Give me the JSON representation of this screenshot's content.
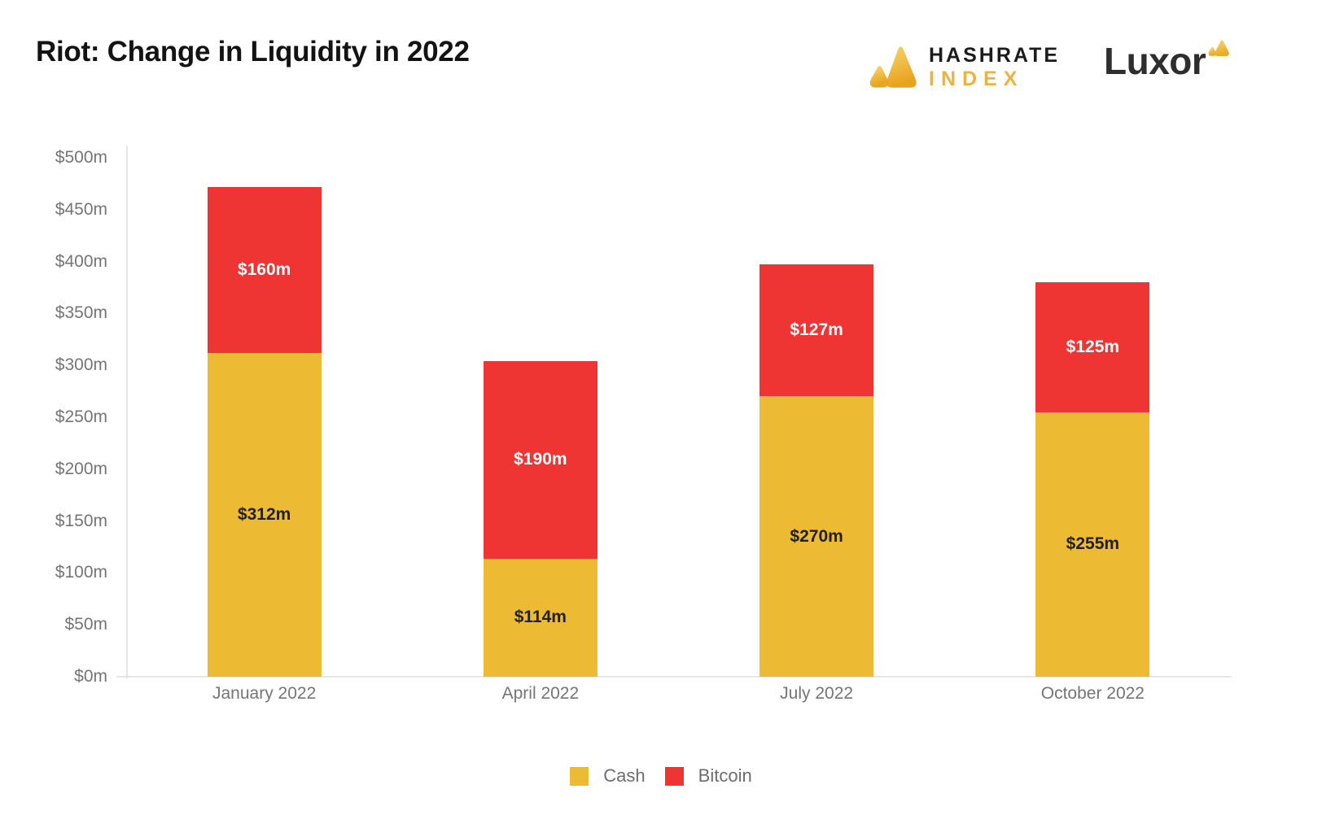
{
  "header": {
    "title": "Riot: Change in Liquidity in 2022",
    "hashrate_logo": {
      "icon": "hashrate-index-triangles-icon",
      "line1": "HASHRATE",
      "line2": "INDEX",
      "line1_color": "#1C1C1C",
      "line2_color": "#ECB243"
    },
    "luxor_logo": {
      "icon": "luxor-triangles-icon",
      "text": "Luxor",
      "text_color": "#2E2E2E"
    },
    "brand_gold": "#ECB243"
  },
  "chart_data": {
    "type": "bar",
    "stacked": true,
    "grid": false,
    "legend_position": "bottom",
    "ylim": [
      0,
      500
    ],
    "categories": [
      "January 2022",
      "April 2022",
      "July 2022",
      "October 2022"
    ],
    "series": [
      {
        "name": "Cash",
        "color": "#EDBA33",
        "label_color": "#212121",
        "values": [
          312,
          114,
          270,
          255
        ],
        "labels": [
          "$312m",
          "$114m",
          "$270m",
          "$255m"
        ]
      },
      {
        "name": "Bitcoin",
        "color": "#EE3534",
        "label_color": "#FFFFFF",
        "values": [
          160,
          190,
          127,
          125
        ],
        "labels": [
          "$160m",
          "$190m",
          "$127m",
          "$125m"
        ]
      }
    ],
    "y_ticks": [
      {
        "value": 0,
        "label": "$0m"
      },
      {
        "value": 50,
        "label": "$50m"
      },
      {
        "value": 100,
        "label": "$100m"
      },
      {
        "value": 150,
        "label": "$150m"
      },
      {
        "value": 200,
        "label": "$200m"
      },
      {
        "value": 250,
        "label": "$250m"
      },
      {
        "value": 300,
        "label": "$300m"
      },
      {
        "value": 350,
        "label": "$350m"
      },
      {
        "value": 400,
        "label": "$400m"
      },
      {
        "value": 450,
        "label": "$450m"
      },
      {
        "value": 500,
        "label": "$500m"
      }
    ]
  }
}
